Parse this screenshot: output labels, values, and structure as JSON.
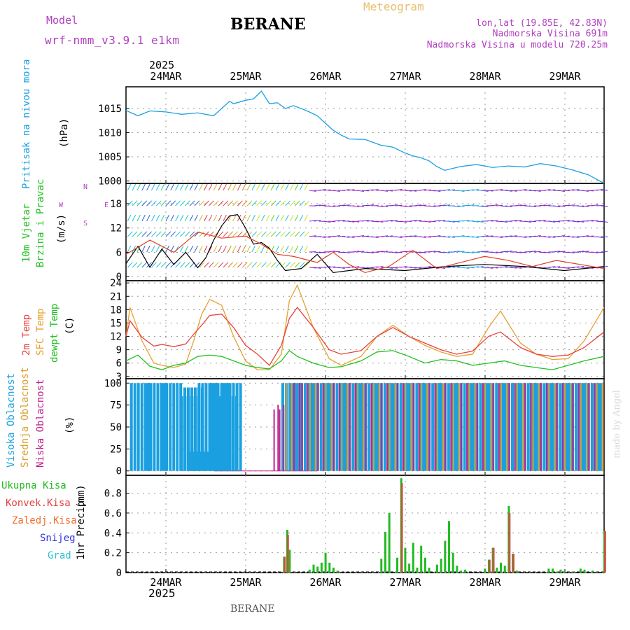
{
  "header": {
    "model_label": "Model",
    "model_name": "wrf-nmm_v3.9.1  e1km",
    "station": "BERANE",
    "product": "Meteogram",
    "coords": "lon,lat (19.85E, 42.83N)",
    "elevation": "Nadmorska Visina 691m",
    "model_elevation": "Nadmorska Visina u modelu 720.25m"
  },
  "footer": {
    "station": "BERANE",
    "credit": "made by Angel"
  },
  "axis_time": {
    "year": "2025",
    "dates": [
      "24MAR",
      "25MAR",
      "26MAR",
      "27MAR",
      "28MAR",
      "29MAR"
    ]
  },
  "colors": {
    "pressure": "#1aa0e0",
    "temp2m": "#e8403a",
    "sfc_temp": "#e8a030",
    "dewpt": "#20c020",
    "high_cloud": "#1aa0e0",
    "mid_cloud": "#d8a030",
    "low_cloud": "#c02090",
    "wind_speed": "#000000",
    "gust": "#e04020",
    "rain_total": "#22bb22",
    "rain_conv": "#e04040",
    "frz": "#f07030",
    "snow": "#3030e0",
    "hail": "#30c0d0"
  },
  "chart_data": [
    {
      "type": "line",
      "title": "",
      "ylabel_lines": [
        "Pritisak na nivou mora",
        "(hPa)"
      ],
      "yticks": [
        1000,
        1005,
        1010,
        1015
      ],
      "ylim": [
        999.5,
        1019.5
      ],
      "xlim_days": [
        0,
        6
      ],
      "series": [
        {
          "x": [
            0,
            0.15,
            0.3,
            0.5,
            0.7,
            0.9,
            1.1,
            1.3,
            1.35,
            1.5,
            1.6,
            1.7,
            1.8,
            1.9,
            2.0,
            2.1,
            2.2,
            2.3,
            2.4,
            2.5,
            2.6,
            2.7,
            2.8,
            3.0,
            3.1,
            3.2,
            3.35,
            3.5,
            3.6,
            3.7,
            3.8,
            3.9,
            4.0,
            4.2,
            4.4,
            4.6,
            4.8,
            5.0,
            5.2,
            5.4,
            5.6,
            5.8,
            6.0
          ],
          "y": [
            1014.6,
            1013.5,
            1014.5,
            1014.3,
            1013.8,
            1014.1,
            1013.5,
            1016.5,
            1016.0,
            1016.7,
            1017.0,
            1018.6,
            1016.0,
            1016.2,
            1015.0,
            1015.6,
            1015.0,
            1014.3,
            1013.5,
            1012.0,
            1010.5,
            1009.5,
            1008.7,
            1008.6,
            1008.0,
            1007.4,
            1007.0,
            1005.8,
            1005.2,
            1004.8,
            1004.2,
            1003.0,
            1002.2,
            1003.0,
            1003.4,
            1002.8,
            1003.1,
            1002.9,
            1003.6,
            1003.1,
            1002.3,
            1001.3,
            999.5
          ]
        }
      ]
    },
    {
      "type": "line",
      "title": "",
      "ylabel_lines": [
        "10m Vjetar",
        "Brzina i Pravac",
        "(m/s)"
      ],
      "compass": {
        "north": "N",
        "south": "S",
        "east": "E",
        "west": "W"
      },
      "yticks": [
        0,
        6,
        12,
        18
      ],
      "ylim": [
        -1,
        23
      ],
      "xlim_days": [
        0,
        6
      ],
      "series": [
        {
          "name": "Wind speed",
          "x": [
            0,
            0.15,
            0.3,
            0.45,
            0.6,
            0.75,
            0.9,
            1.0,
            1.1,
            1.2,
            1.3,
            1.4,
            1.5,
            1.6,
            1.7,
            1.8,
            1.9,
            2.0,
            2.2,
            2.4,
            2.6,
            2.8,
            3.0,
            3.5,
            4.0,
            4.5,
            5.0,
            5.5,
            6.0
          ],
          "y": [
            3.2,
            7.5,
            2.3,
            6.8,
            3.0,
            6.0,
            2.2,
            4.6,
            9.0,
            12.5,
            15.0,
            15.3,
            12.0,
            8.0,
            8.4,
            7.0,
            4.0,
            1.5,
            2.0,
            5.5,
            1.0,
            1.5,
            2.0,
            1.5,
            2.5,
            3.0,
            2.5,
            1.5,
            2.5
          ]
        },
        {
          "name": "Gust",
          "x": [
            0,
            0.3,
            0.6,
            0.9,
            1.2,
            1.5,
            1.7,
            1.9,
            2.1,
            2.4,
            2.6,
            2.8,
            3.0,
            3.3,
            3.6,
            3.9,
            4.2,
            4.5,
            4.8,
            5.1,
            5.4,
            5.7,
            6.0
          ],
          "y": [
            5.5,
            9.0,
            6.0,
            11.0,
            9.5,
            10.0,
            8.0,
            5.5,
            5.0,
            3.5,
            6.0,
            3.0,
            1.0,
            2.5,
            6.5,
            2.0,
            3.5,
            5.0,
            4.0,
            2.5,
            4.0,
            3.0,
            2.0
          ]
        }
      ]
    },
    {
      "type": "line",
      "title": "",
      "ylabel_lines": [
        "2m Temp",
        "SFC Temp",
        "dewpt Temp",
        "(C)"
      ],
      "yticks": [
        3,
        6,
        9,
        12,
        15,
        18,
        21,
        24
      ],
      "ylim": [
        2.5,
        24.5
      ],
      "xlim_days": [
        0,
        6
      ],
      "series": [
        {
          "name": "2m Temp",
          "x": [
            0,
            0.05,
            0.2,
            0.35,
            0.45,
            0.6,
            0.75,
            0.85,
            0.95,
            1.05,
            1.2,
            1.35,
            1.5,
            1.65,
            1.8,
            1.95,
            2.05,
            2.15,
            2.35,
            2.55,
            2.7,
            2.95,
            3.15,
            3.35,
            3.55,
            3.75,
            3.95,
            4.15,
            4.35,
            4.55,
            4.7,
            4.95,
            5.15,
            5.35,
            5.55,
            5.75,
            6.0
          ],
          "y": [
            12.0,
            15.5,
            11.8,
            9.8,
            10.2,
            9.7,
            10.3,
            12.5,
            14.5,
            16.7,
            17.0,
            14.0,
            10.0,
            8.0,
            5.5,
            10.0,
            16.0,
            18.5,
            14.0,
            9.0,
            8.0,
            8.8,
            12.0,
            14.0,
            12.0,
            10.5,
            9.0,
            8.0,
            8.7,
            12.0,
            13.0,
            9.5,
            8.0,
            7.5,
            7.8,
            9.5,
            13.0
          ]
        },
        {
          "name": "SFC Temp",
          "x": [
            0,
            0.05,
            0.2,
            0.35,
            0.45,
            0.6,
            0.75,
            0.85,
            0.95,
            1.05,
            1.2,
            1.35,
            1.5,
            1.65,
            1.8,
            1.95,
            2.05,
            2.15,
            2.35,
            2.55,
            2.7,
            2.95,
            3.15,
            3.35,
            3.55,
            3.75,
            3.95,
            4.15,
            4.35,
            4.55,
            4.7,
            4.95,
            5.15,
            5.35,
            5.55,
            5.75,
            6.0
          ],
          "y": [
            12.0,
            18.5,
            11.0,
            6.0,
            5.5,
            5.0,
            5.8,
            11.0,
            17.0,
            20.3,
            19.0,
            12.0,
            6.5,
            4.5,
            4.5,
            8.0,
            20.0,
            23.5,
            14.0,
            7.0,
            5.5,
            7.5,
            12.0,
            14.5,
            12.0,
            10.0,
            8.5,
            7.5,
            8.0,
            14.0,
            17.7,
            10.5,
            8.0,
            6.8,
            7.0,
            11.0,
            18.5
          ]
        },
        {
          "name": "dewpt Temp",
          "x": [
            0,
            0.15,
            0.3,
            0.45,
            0.6,
            0.75,
            0.9,
            1.05,
            1.2,
            1.35,
            1.5,
            1.65,
            1.8,
            1.95,
            2.05,
            2.15,
            2.35,
            2.55,
            2.7,
            2.95,
            3.15,
            3.35,
            3.55,
            3.75,
            3.95,
            4.15,
            4.35,
            4.55,
            4.75,
            4.95,
            5.15,
            5.35,
            5.55,
            5.75,
            6.0
          ],
          "y": [
            6.5,
            7.8,
            5.3,
            4.5,
            5.5,
            6.0,
            7.5,
            7.8,
            7.5,
            6.5,
            5.5,
            5.0,
            4.7,
            6.5,
            8.8,
            7.5,
            6.0,
            5.0,
            5.2,
            6.5,
            8.5,
            8.8,
            7.5,
            6.0,
            6.8,
            6.5,
            5.5,
            6.0,
            6.5,
            5.5,
            5.0,
            4.5,
            5.5,
            6.5,
            7.5
          ]
        }
      ]
    },
    {
      "type": "bar",
      "title": "",
      "ylabel_lines": [
        "Visoka Oblacnost",
        "Srednja Oblacnost",
        "Niska Oblacnost",
        "(%)"
      ],
      "yticks": [
        0,
        25,
        50,
        75,
        100
      ],
      "ylim": [
        -5,
        105
      ],
      "xlim_days": [
        0,
        6
      ],
      "series": [
        {
          "name": "Visoka Oblacnost",
          "note": "high cloud near 100% for most of 24MAR and again near 25.95MAR; 0% from about 25.1 to 25.9",
          "x": [
            0.05,
            0.25,
            0.45,
            0.68,
            0.72,
            0.8,
            0.9,
            1.05,
            1.15,
            1.2,
            1.95,
            2.1,
            2.3,
            2.5,
            2.7,
            2.9,
            3.1,
            3.3,
            3.5,
            3.7,
            3.9,
            4.1,
            4.3,
            4.5,
            4.7,
            4.9,
            5.1,
            5.3,
            5.5,
            5.7,
            5.9
          ],
          "y": [
            100,
            100,
            100,
            85,
            95,
            22,
            100,
            100,
            85,
            100,
            100,
            100,
            100,
            100,
            100,
            100,
            100,
            100,
            100,
            100,
            100,
            100,
            100,
            100,
            100,
            100,
            100,
            100,
            100,
            100,
            100
          ]
        },
        {
          "name": "Srednja Oblacnost",
          "x": [
            2.0,
            2.1,
            2.2,
            2.3,
            2.4,
            2.5,
            2.6,
            2.7,
            2.8,
            2.9,
            3.0,
            3.1,
            3.2,
            3.3,
            3.4,
            3.5,
            3.6,
            3.7,
            3.8,
            3.9,
            4.0,
            4.1,
            4.2,
            4.3,
            4.4,
            4.5,
            4.6,
            4.7,
            4.8,
            4.9,
            5.0,
            5.1,
            5.2,
            5.3,
            5.4,
            5.5,
            5.6,
            5.7,
            5.8,
            5.9
          ],
          "y": [
            100,
            100,
            100,
            100,
            100,
            100,
            100,
            100,
            100,
            100,
            100,
            100,
            100,
            100,
            100,
            100,
            100,
            100,
            100,
            100,
            100,
            100,
            100,
            100,
            100,
            100,
            100,
            100,
            100,
            100,
            100,
            100,
            100,
            100,
            100,
            100,
            100,
            100,
            100,
            100
          ]
        },
        {
          "name": "Niska Oblacnost",
          "x": [
            1.85,
            1.9,
            2.0,
            2.1,
            2.2,
            2.4,
            2.6,
            2.8,
            3.0,
            3.2,
            3.4,
            3.6,
            3.8,
            4.0,
            4.2,
            4.4,
            4.6,
            4.8,
            5.0,
            5.2,
            5.4,
            5.6,
            5.8
          ],
          "y": [
            70,
            75,
            0,
            100,
            100,
            100,
            100,
            100,
            100,
            100,
            100,
            100,
            100,
            100,
            100,
            100,
            100,
            100,
            100,
            100,
            100,
            100,
            100
          ]
        }
      ]
    },
    {
      "type": "bar",
      "title": "",
      "ylabel_lines": [
        "1hr Precip",
        "(mm)"
      ],
      "legend": [
        "Ukupna Kisa",
        "Konvek.Kisa",
        "Zaledj.Kisa",
        "Snijeg",
        "Grad"
      ],
      "yticks": [
        0,
        0.2,
        0.4,
        0.6,
        0.8
      ],
      "ylim": [
        0,
        0.98
      ],
      "xlim_days": [
        0,
        6
      ],
      "series": [
        {
          "name": "Ukupna Kisa",
          "x": [
            1.98,
            2.02,
            2.05,
            2.3,
            2.35,
            2.4,
            2.45,
            2.5,
            2.55,
            2.6,
            2.65,
            3.2,
            3.25,
            3.3,
            3.4,
            3.45,
            3.5,
            3.55,
            3.6,
            3.65,
            3.7,
            3.75,
            3.8,
            3.9,
            3.95,
            4.0,
            4.05,
            4.1,
            4.15,
            4.2,
            4.25,
            4.5,
            4.55,
            4.6,
            4.65,
            4.7,
            4.75,
            4.8,
            4.85,
            4.9,
            5.3,
            5.35,
            5.4,
            5.45,
            5.5,
            5.6,
            5.7,
            5.75,
            5.85,
            6.0
          ],
          "y": [
            0.16,
            0.43,
            0.23,
            0.03,
            0.08,
            0.06,
            0.1,
            0.2,
            0.1,
            0.05,
            0.02,
            0.14,
            0.41,
            0.6,
            0.15,
            0.95,
            0.25,
            0.09,
            0.3,
            0.05,
            0.27,
            0.15,
            0.05,
            0.08,
            0.14,
            0.32,
            0.52,
            0.2,
            0.07,
            0.02,
            0.03,
            0.04,
            0.13,
            0.25,
            0.05,
            0.1,
            0.07,
            0.67,
            0.19,
            0.02,
            0.04,
            0.04,
            0.01,
            0.03,
            0.01,
            0.01,
            0.04,
            0.03,
            0.02,
            0.42
          ]
        },
        {
          "name": "Konvek.Kisa",
          "x": [
            1.98,
            2.02,
            3.45,
            4.55,
            4.6,
            4.8,
            4.85,
            6.0
          ],
          "y": [
            0.16,
            0.38,
            0.9,
            0.13,
            0.25,
            0.6,
            0.19,
            0.42
          ]
        }
      ]
    }
  ]
}
